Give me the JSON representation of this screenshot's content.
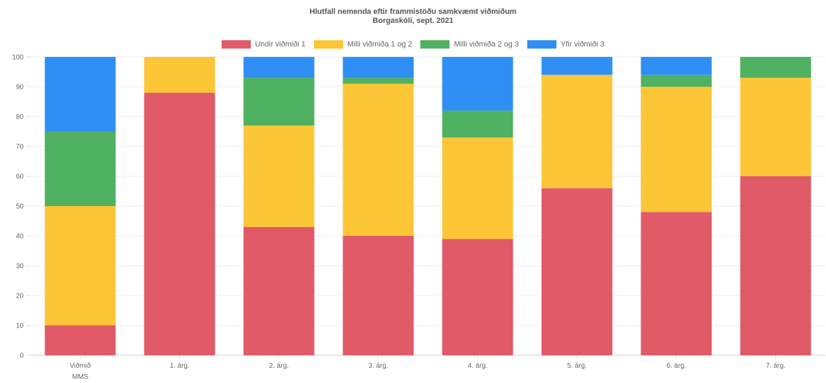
{
  "chart_data": {
    "type": "bar",
    "stacked": true,
    "title": "Hlutfall nemenda eftir frammistöðu samkvæmt viðmiðum",
    "subtitle": "Borgaskóli, sept. 2021",
    "categories": [
      [
        "Viðmið",
        "MMS"
      ],
      "1. árg.",
      "2. árg.",
      "3. árg.",
      "4. árg.",
      "5. árg.",
      "6. árg.",
      "7. árg."
    ],
    "series": [
      {
        "name": "Undir viðmiði 1",
        "color": "#e05a68",
        "values": [
          10,
          88,
          43,
          40,
          39,
          56,
          48,
          60
        ]
      },
      {
        "name": "Milli viðmiða 1 og 2",
        "color": "#fcc636",
        "values": [
          40,
          12,
          34,
          51,
          34,
          38,
          42,
          33
        ]
      },
      {
        "name": "Milli viðmiða 2 og 3",
        "color": "#4fb161",
        "values": [
          25,
          0,
          16,
          2,
          9,
          0,
          4,
          7
        ]
      },
      {
        "name": "Yfir viðmiði 3",
        "color": "#2f8ff5",
        "values": [
          25,
          0,
          7,
          7,
          18,
          6,
          6,
          0
        ]
      }
    ],
    "ylim": [
      0,
      100
    ],
    "yticks": [
      0,
      10,
      20,
      30,
      40,
      50,
      60,
      70,
      80,
      90,
      100
    ],
    "grid": true,
    "legend_position": "top"
  }
}
